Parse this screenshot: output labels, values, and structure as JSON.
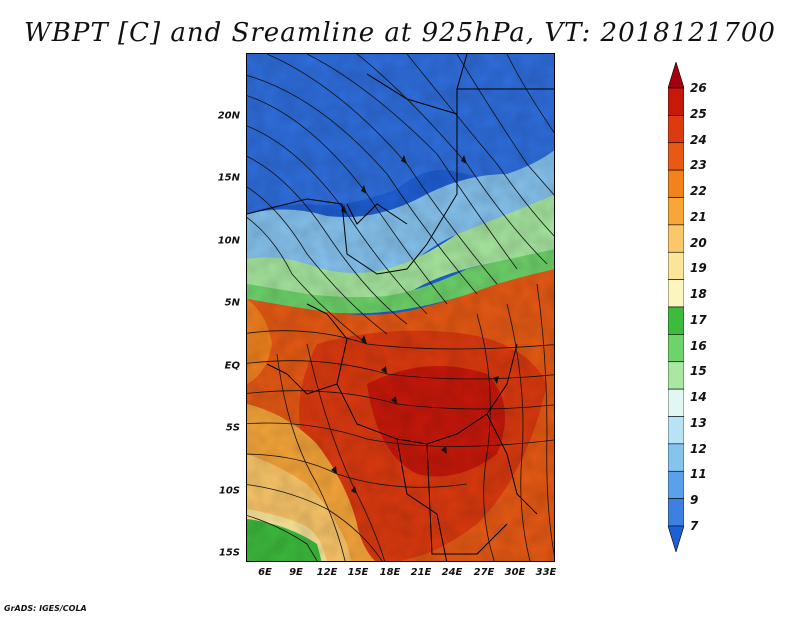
{
  "title": "WBPT [C] and Sreamline at 925hPa, VT: 2018121700",
  "credit": "GrADS: IGES/COLA",
  "map": {
    "lat_labels": [
      "20N",
      "15N",
      "10N",
      "5N",
      "EQ",
      "5S",
      "10S",
      "15S"
    ],
    "lon_labels": [
      "6E",
      "9E",
      "12E",
      "15E",
      "18E",
      "21E",
      "24E",
      "27E",
      "30E",
      "33E"
    ],
    "field": "wet-bulb potential temperature",
    "overlay": "streamlines",
    "background_fill": "#1f5fd6"
  },
  "colorbar": {
    "labels": [
      "26",
      "25",
      "24",
      "23",
      "22",
      "21",
      "20",
      "19",
      "18",
      "17",
      "16",
      "15",
      "14",
      "13",
      "12",
      "11",
      "9",
      "7"
    ],
    "colors": [
      "#a50010",
      "#c8180a",
      "#dd3a0f",
      "#e85a14",
      "#f2821d",
      "#f7a63a",
      "#fcc76a",
      "#fbe59a",
      "#fdf5c0",
      "#3cbb3c",
      "#6ed36a",
      "#a8e8a0",
      "#e2f7f3",
      "#b8e3f7",
      "#86c4f0",
      "#5aa0ea",
      "#3c80e0",
      "#1f5fd6"
    ]
  }
}
